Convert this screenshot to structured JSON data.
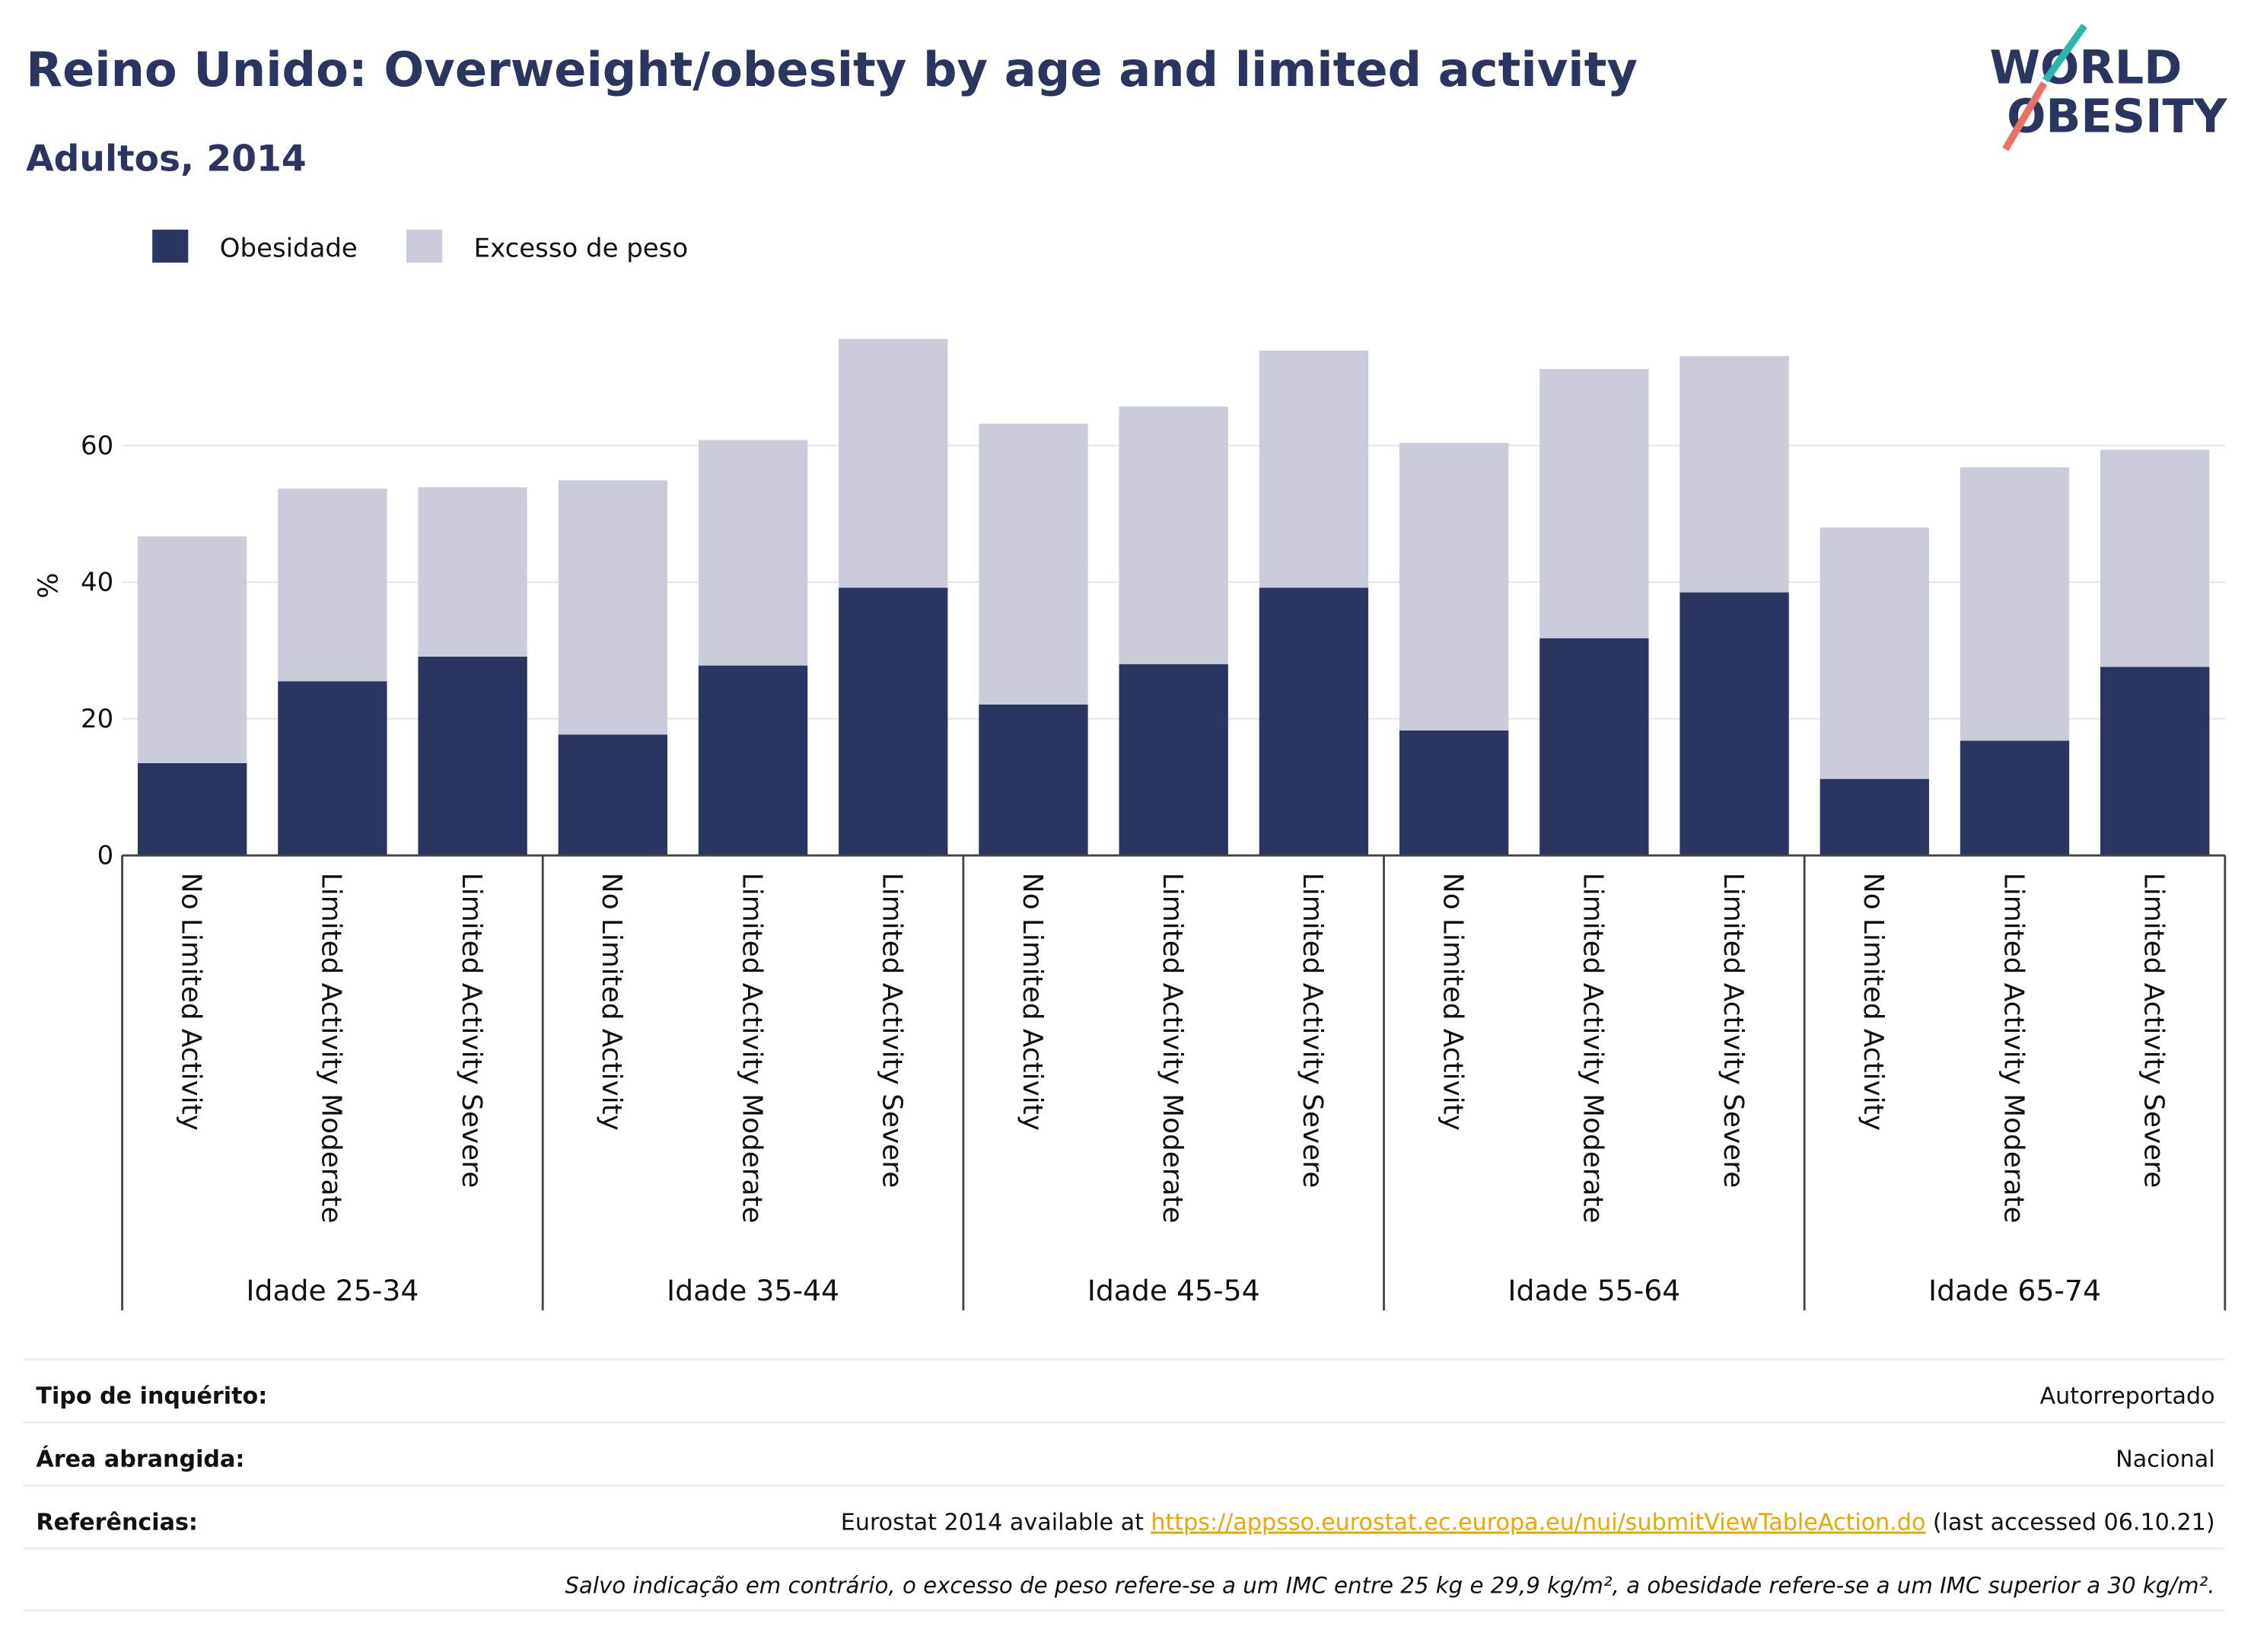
{
  "chart_data": {
    "type": "stacked_bar",
    "title": "Reino Unido: Overweight/obesity by age and limited activity",
    "subtitle": "Adultos, 2014",
    "y_label": "%",
    "categories": [
      "No Limited Activity",
      "Limited Activity Moderate",
      "Limited Activity Severe",
      "No Limited Activity",
      "Limited Activity Moderate",
      "Limited Activity Severe",
      "No Limited Activity",
      "Limited Activity Moderate",
      "Limited Activity Severe",
      "No Limited Activity",
      "Limited Activity Moderate",
      "Limited Activity Severe",
      "No Limited Activity",
      "Limited Activity Moderate",
      "Limited Activity Severe"
    ],
    "groups": [
      "Idade 25-34",
      "Idade 35-44",
      "Idade 45-54",
      "Idade 55-64",
      "Idade 65-74"
    ],
    "series": [
      {
        "name": "Obesidade",
        "color": "#2a3561",
        "values": [
          13.5,
          25.5,
          29.1,
          17.7,
          27.8,
          39.2,
          22.1,
          28.0,
          39.2,
          18.3,
          31.8,
          38.5,
          11.2,
          16.8,
          27.6
        ]
      },
      {
        "name": "Excesso de peso",
        "color": "#cacdd9",
        "values": [
          33.2,
          28.2,
          24.8,
          37.2,
          33.0,
          36.4,
          41.1,
          37.7,
          34.7,
          42.1,
          39.4,
          34.6,
          36.8,
          40.0,
          31.8
        ]
      }
    ],
    "ylim": [
      0,
      79
    ],
    "yticks": [
      0,
      20,
      40,
      60
    ],
    "grid": true
  },
  "logo": [
    "WORLD",
    "OBESITY"
  ],
  "footer": {
    "rows": [
      {
        "label": "Tipo de inquérito:",
        "value": "Autorreportado"
      },
      {
        "label": "Área abrangida:",
        "value": "Nacional"
      },
      {
        "label": "Referências:",
        "value": [
          "Eurostat 2014 available at",
          "https://appsso.eurostat.ec.europa.eu/nui/submitViewTableAction.do",
          "(last accessed 06.10.21)"
        ]
      }
    ],
    "note": "Salvo indicação em contrário, o excesso de peso refere-se a um IMC entre 25 kg e 29,9 kg/m², a obesidade refere-se a um IMC superior a 30 kg/m²."
  }
}
